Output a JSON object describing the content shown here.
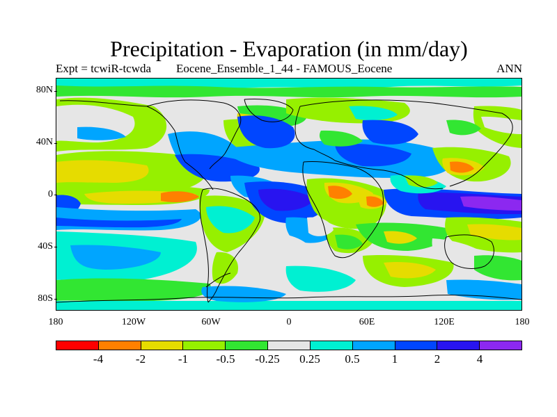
{
  "title": "Precipitation - Evaporation (in mm/day)",
  "subtitle_left": "Expt = tcwiR-tcwda",
  "subtitle_center": "Eocene_Ensemble_1_44 - FAMOUS_Eocene",
  "subtitle_right": "ANN",
  "lat_labels": [
    "80N",
    "40N",
    "0",
    "40S",
    "80S"
  ],
  "lon_labels": [
    "180",
    "120W",
    "60W",
    "0",
    "60E",
    "120E",
    "180"
  ],
  "colorbar": {
    "colors": [
      "#ff0000",
      "#ff8000",
      "#e6dc00",
      "#96f000",
      "#32e632",
      "#e6e6e6",
      "#00f0d2",
      "#00a5ff",
      "#0046ff",
      "#2814f0",
      "#8c28f0"
    ],
    "labels": [
      "-4",
      "-2",
      "-1",
      "-0.5",
      "-0.25",
      "0.25",
      "0.5",
      "1",
      "2",
      "4"
    ]
  }
}
